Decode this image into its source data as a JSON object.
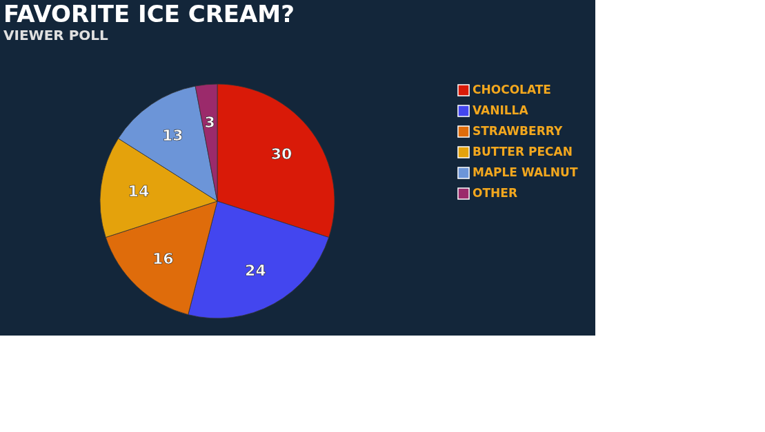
{
  "chart_data": {
    "type": "pie",
    "title": "FAVORITE ICE CREAM?",
    "subtitle": "VIEWER POLL",
    "categories": [
      "CHOCOLATE",
      "VANILLA",
      "STRAWBERRY",
      "BUTTER PECAN",
      "MAPLE WALNUT",
      "OTHER"
    ],
    "values": [
      30,
      24,
      16,
      14,
      13,
      3
    ],
    "colors": [
      "#d91a08",
      "#4346ef",
      "#df6c0b",
      "#e4a20c",
      "#6c95d8",
      "#9b2a6b"
    ],
    "data_labels": true,
    "legend": "right"
  }
}
